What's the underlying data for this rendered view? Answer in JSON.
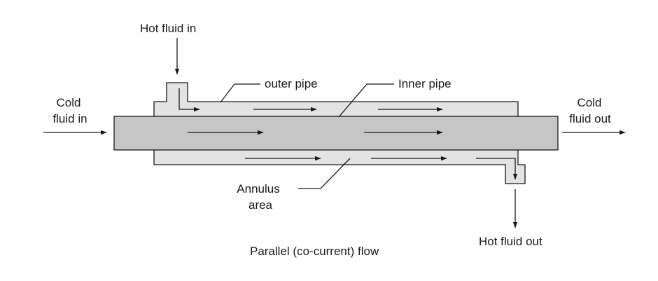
{
  "labels": {
    "hot_in": "Hot fluid in",
    "outer_pipe": "outer pipe",
    "inner_pipe": "Inner pipe",
    "cold_in_1": "Cold",
    "cold_in_2": "fluid in",
    "cold_out_1": "Cold",
    "cold_out_2": "fluid out",
    "annulus_1": "Annulus",
    "annulus_2": "area",
    "hot_out": "Hot fluid out",
    "caption": "Parallel (co-current) flow"
  },
  "colors": {
    "annulus_fill": "#e3e3e3",
    "inner_pipe_fill": "#c6c6c6",
    "stroke": "#1a1a1a"
  }
}
